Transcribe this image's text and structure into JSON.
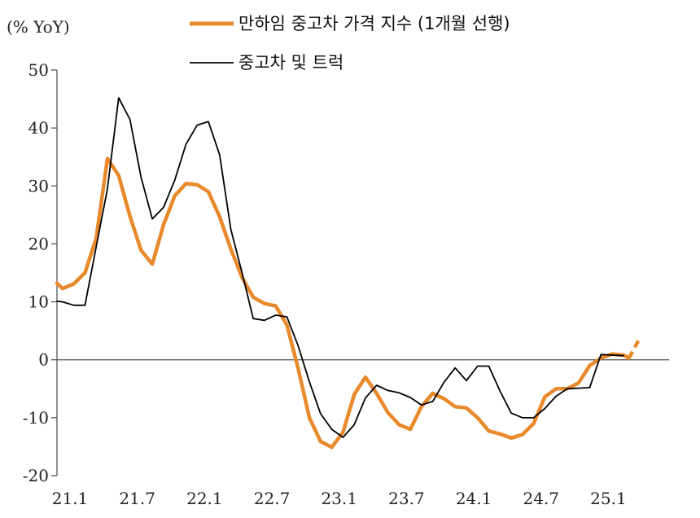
{
  "chart_data": {
    "type": "line",
    "unit_label": "(% YoY)",
    "ylim": [
      -20,
      50
    ],
    "yticks": [
      50,
      40,
      30,
      20,
      10,
      0,
      -10,
      -20
    ],
    "xlim": [
      0,
      52
    ],
    "xticks": [
      {
        "x": 0,
        "label": "21.1"
      },
      {
        "x": 6,
        "label": "21.7"
      },
      {
        "x": 12,
        "label": "22.1"
      },
      {
        "x": 18,
        "label": "22.7"
      },
      {
        "x": 24,
        "label": "23.1"
      },
      {
        "x": 30,
        "label": "23.7"
      },
      {
        "x": 36,
        "label": "24.1"
      },
      {
        "x": 42,
        "label": "24.7"
      },
      {
        "x": 48,
        "label": "25.1"
      }
    ],
    "legend": {
      "placement": "top-center"
    },
    "series": [
      {
        "name": "만하임 중고차 가격 지수 (1개월 선행)",
        "color": "#E8892B",
        "style": "thick",
        "values": [
          [
            0,
            13.2
          ],
          [
            0.5,
            12.3
          ],
          [
            1.5,
            13.1
          ],
          [
            2.5,
            15.0
          ],
          [
            3.5,
            21.0
          ],
          [
            4.5,
            34.7
          ],
          [
            5.5,
            31.8
          ],
          [
            6.5,
            24.8
          ],
          [
            7.5,
            18.9
          ],
          [
            8.5,
            16.5
          ],
          [
            9.5,
            23.3
          ],
          [
            10.5,
            28.3
          ],
          [
            11.5,
            30.4
          ],
          [
            12.5,
            30.2
          ],
          [
            13.5,
            29.0
          ],
          [
            14.5,
            24.7
          ],
          [
            15.5,
            19.1
          ],
          [
            16.5,
            14.2
          ],
          [
            17.5,
            10.8
          ],
          [
            18.5,
            9.7
          ],
          [
            19.5,
            9.3
          ],
          [
            20.5,
            6.0
          ],
          [
            21.5,
            -1.5
          ],
          [
            22.5,
            -10.0
          ],
          [
            23.5,
            -14.1
          ],
          [
            24.5,
            -15.1
          ],
          [
            25.5,
            -12.5
          ],
          [
            26.5,
            -6.0
          ],
          [
            27.5,
            -3.0
          ],
          [
            28.5,
            -5.8
          ],
          [
            29.5,
            -9.1
          ],
          [
            30.5,
            -11.2
          ],
          [
            31.5,
            -12.0
          ],
          [
            32.5,
            -8.1
          ],
          [
            33.5,
            -5.8
          ],
          [
            34.5,
            -6.7
          ],
          [
            35.5,
            -8.1
          ],
          [
            36.5,
            -8.3
          ],
          [
            37.5,
            -10.0
          ],
          [
            38.5,
            -12.3
          ],
          [
            39.5,
            -12.8
          ],
          [
            40.5,
            -13.5
          ],
          [
            41.5,
            -12.9
          ],
          [
            42.5,
            -11.0
          ],
          [
            43.5,
            -6.4
          ],
          [
            44.5,
            -5.0
          ],
          [
            45.5,
            -5.0
          ],
          [
            46.5,
            -4.0
          ],
          [
            47.5,
            -1.0
          ],
          [
            48.5,
            0.3
          ],
          [
            49.5,
            1.0
          ],
          [
            50.5,
            0.8
          ],
          [
            51.0,
            0.3
          ]
        ]
      },
      {
        "name": "",
        "color": "#E8892B",
        "style": "dashed",
        "values": [
          [
            51.0,
            0.3
          ],
          [
            52.0,
            3.9
          ]
        ]
      },
      {
        "name": "중고차 및 트럭",
        "color": "#000000",
        "style": "thin",
        "values": [
          [
            0,
            10.1
          ],
          [
            0.5,
            10.0
          ],
          [
            1.5,
            9.4
          ],
          [
            2.5,
            9.4
          ],
          [
            3.5,
            19.5
          ],
          [
            4.5,
            29.5
          ],
          [
            5.5,
            45.2
          ],
          [
            6.5,
            41.5
          ],
          [
            7.5,
            31.5
          ],
          [
            8.5,
            24.3
          ],
          [
            9.5,
            26.3
          ],
          [
            10.5,
            31.0
          ],
          [
            11.5,
            37.2
          ],
          [
            12.5,
            40.5
          ],
          [
            13.5,
            41.1
          ],
          [
            14.5,
            35.4
          ],
          [
            15.5,
            22.5
          ],
          [
            16.5,
            15.0
          ],
          [
            17.5,
            7.1
          ],
          [
            18.5,
            6.8
          ],
          [
            19.5,
            7.7
          ],
          [
            20.5,
            7.4
          ],
          [
            21.5,
            2.4
          ],
          [
            22.5,
            -3.8
          ],
          [
            23.5,
            -9.3
          ],
          [
            24.5,
            -12.0
          ],
          [
            25.5,
            -13.4
          ],
          [
            26.5,
            -11.2
          ],
          [
            27.5,
            -6.6
          ],
          [
            28.5,
            -4.4
          ],
          [
            29.5,
            -5.3
          ],
          [
            30.5,
            -5.7
          ],
          [
            31.5,
            -6.5
          ],
          [
            32.5,
            -7.8
          ],
          [
            33.5,
            -7.2
          ],
          [
            34.5,
            -3.9
          ],
          [
            35.5,
            -1.4
          ],
          [
            36.5,
            -3.6
          ],
          [
            37.5,
            -1.1
          ],
          [
            38.5,
            -1.1
          ],
          [
            39.5,
            -5.4
          ],
          [
            40.5,
            -9.2
          ],
          [
            41.5,
            -10.0
          ],
          [
            42.5,
            -10.0
          ],
          [
            43.5,
            -8.4
          ],
          [
            44.5,
            -6.3
          ],
          [
            45.5,
            -5.0
          ],
          [
            46.5,
            -4.9
          ],
          [
            47.5,
            -4.8
          ],
          [
            48.5,
            0.9
          ],
          [
            49.5,
            0.8
          ],
          [
            50.5,
            0.7
          ]
        ]
      }
    ]
  }
}
